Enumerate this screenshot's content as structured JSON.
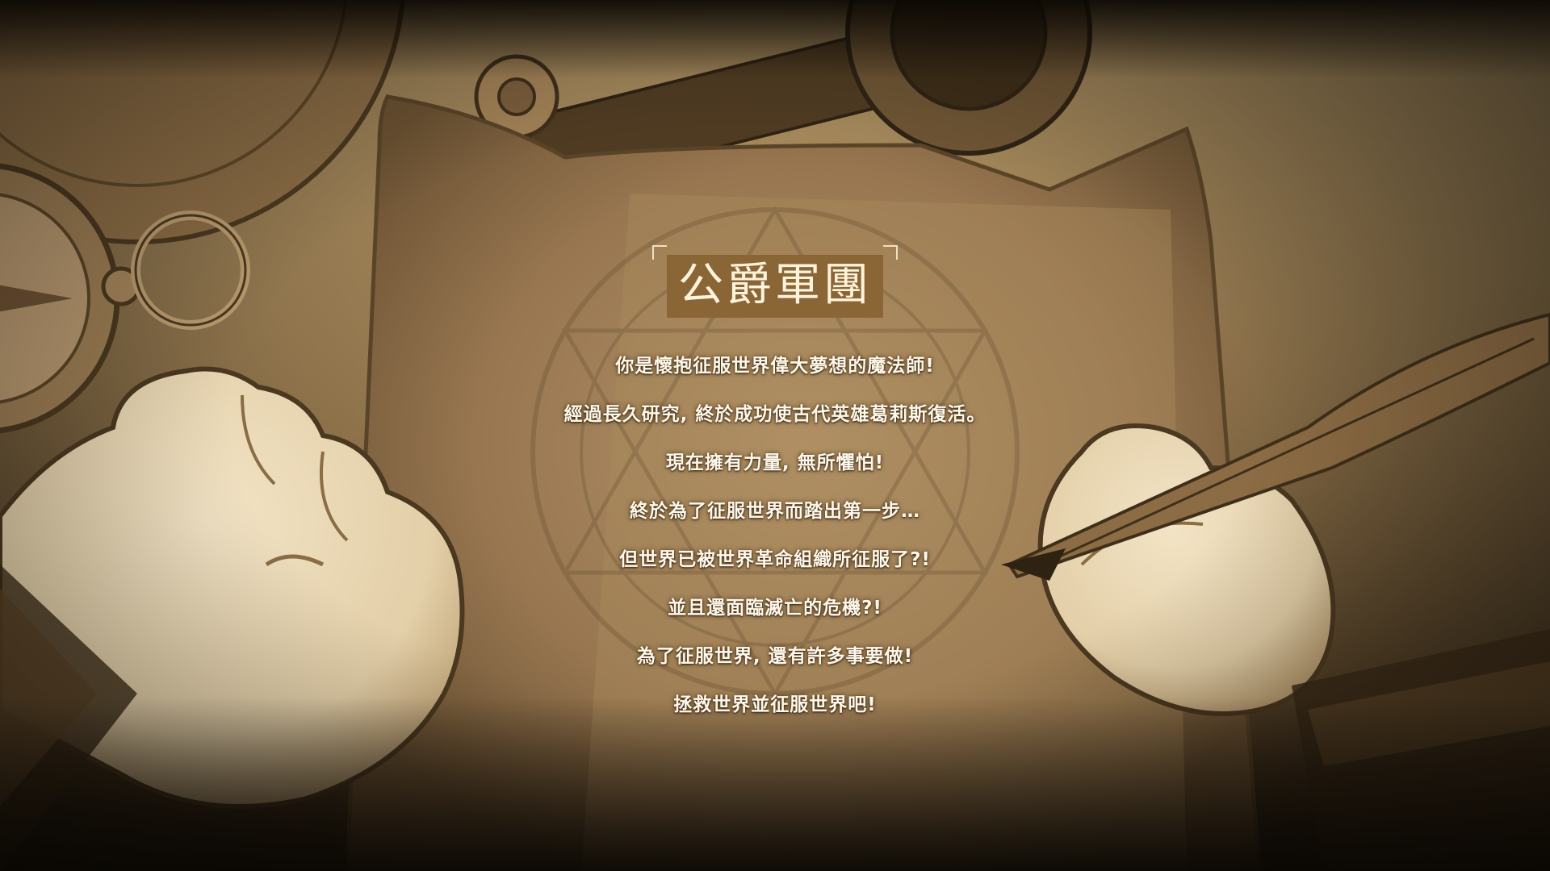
{
  "title": "公爵軍團",
  "story_lines": [
    "你是懷抱征服世界偉大夢想的魔法師!",
    "經過長久研究, 終於成功使古代英雄葛莉斯復活。",
    "現在擁有力量, 無所懼怕!",
    "終於為了征服世界而踏出第一步…",
    "但世界已被世界革命組織所征服了?!",
    "並且還面臨滅亡的危機?!",
    "為了征服世界, 還有許多事要做!",
    "拯救世界並征服世界吧!"
  ],
  "colors": {
    "parchment": "#a98a5c",
    "title_box": "#8a6536",
    "text": "#fff8ea",
    "background_dark": "#120d07"
  },
  "icons": [
    "compass-icon",
    "quill-icon",
    "magic-circle-icon"
  ]
}
